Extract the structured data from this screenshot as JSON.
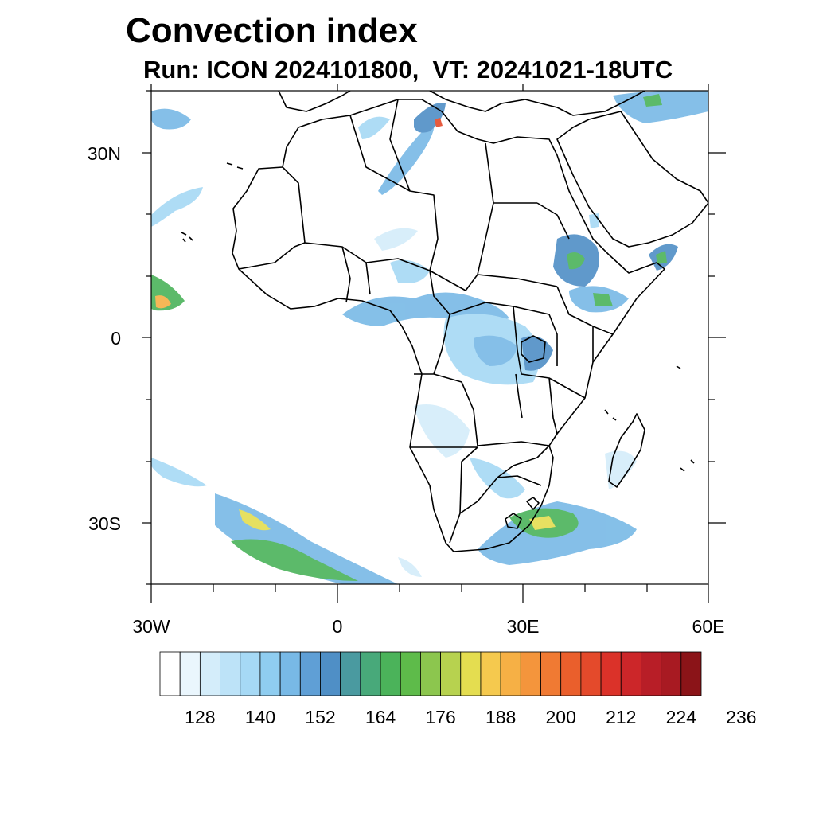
{
  "figure": {
    "title": "Convection index",
    "subtitle": "Run: ICON 2024101800,  VT: 20241021-18UTC"
  },
  "axes": {
    "lat_labels": [
      "30N",
      "0",
      "30S"
    ],
    "lon_labels": [
      "30W",
      "0",
      "30E",
      "60E"
    ],
    "lat_range": [
      -40,
      40
    ],
    "lon_range": [
      -30,
      60
    ]
  },
  "colorbar": {
    "labels": [
      "128",
      "140",
      "152",
      "164",
      "176",
      "188",
      "200",
      "212",
      "224",
      "236"
    ],
    "colors": [
      "#ffffff",
      "#eaf6fd",
      "#d4edfa",
      "#bde3f8",
      "#a6d9f5",
      "#8fcdf0",
      "#78b9e6",
      "#5f9fd6",
      "#4f8fc6",
      "#4a9aa0",
      "#48a97a",
      "#4bb35a",
      "#5ebb4a",
      "#8cc64e",
      "#b7d24f",
      "#e4dd50",
      "#f5c94e",
      "#f6b045",
      "#f4953c",
      "#f07a33",
      "#ea5f2c",
      "#e44a2b",
      "#db3229",
      "#cc2629",
      "#b81e27",
      "#a81a22",
      "#8b1418"
    ]
  },
  "map": {
    "coastline_color": "#000000",
    "shading_colors": [
      "#d4edfa",
      "#a6d9f5",
      "#78b9e6",
      "#4f8fc6",
      "#4a9aa0",
      "#4bb35a",
      "#8cc64e",
      "#e4dd50",
      "#f6b045",
      "#e44a2b"
    ]
  }
}
